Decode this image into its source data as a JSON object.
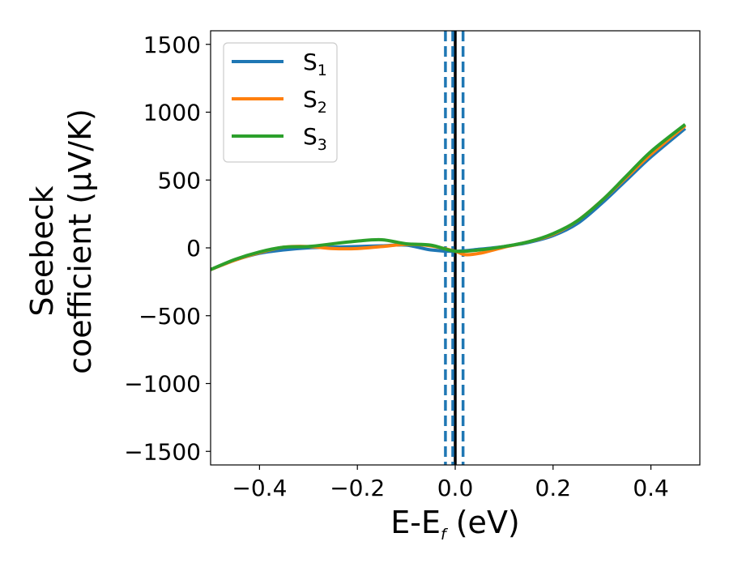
{
  "chart_data": {
    "type": "line",
    "title": "",
    "xlabel": {
      "main": "E-E",
      "sub": "f",
      "unit": " (eV)"
    },
    "ylabel": {
      "line1": "Seebeck",
      "line2": "coefficient  (μV/K)"
    },
    "xlim": [
      -0.5,
      0.5
    ],
    "ylim": [
      -1600,
      1600
    ],
    "xticks": [
      -0.4,
      -0.2,
      0.0,
      0.2,
      0.4
    ],
    "xtick_labels": [
      "−0.4",
      "−0.2",
      "0.0",
      "0.2",
      "0.4"
    ],
    "yticks": [
      -1500,
      -1000,
      -500,
      0,
      500,
      1000,
      1500
    ],
    "ytick_labels": [
      "−1500",
      "−1000",
      "−500",
      "0",
      "500",
      "1000",
      "1500"
    ],
    "grid": false,
    "legend_position": "top-left",
    "vlines": [
      {
        "x": 0.0,
        "style": "solid",
        "color": "#000000"
      },
      {
        "x": -0.02,
        "style": "dashed",
        "color": "#1f77b4"
      },
      {
        "x": -0.005,
        "style": "dashed",
        "color": "#1f77b4"
      },
      {
        "x": 0.016,
        "style": "dashed",
        "color": "#1f77b4"
      }
    ],
    "series": [
      {
        "name": "S",
        "sub": "1",
        "color": "#1f77b4",
        "x": [
          -0.5,
          -0.45,
          -0.4,
          -0.35,
          -0.3,
          -0.25,
          -0.2,
          -0.15,
          -0.1,
          -0.05,
          0.0,
          0.05,
          0.1,
          0.15,
          0.2,
          0.25,
          0.3,
          0.35,
          0.4,
          0.47
        ],
        "y": [
          -160,
          -90,
          -40,
          -15,
          0,
          5,
          10,
          15,
          20,
          -15,
          -25,
          -10,
          10,
          40,
          90,
          180,
          330,
          500,
          670,
          880
        ]
      },
      {
        "name": "S",
        "sub": "2",
        "color": "#ff7f0e",
        "x": [
          -0.5,
          -0.45,
          -0.4,
          -0.35,
          -0.3,
          -0.25,
          -0.2,
          -0.15,
          -0.1,
          -0.05,
          0.0,
          0.02,
          0.05,
          0.1,
          0.15,
          0.2,
          0.25,
          0.3,
          0.35,
          0.4,
          0.47
        ],
        "y": [
          -160,
          -90,
          -35,
          5,
          10,
          -5,
          -5,
          10,
          25,
          15,
          -25,
          -50,
          -40,
          5,
          45,
          100,
          200,
          350,
          520,
          690,
          900
        ]
      },
      {
        "name": "S",
        "sub": "3",
        "color": "#2ca02c",
        "x": [
          -0.5,
          -0.45,
          -0.4,
          -0.35,
          -0.3,
          -0.25,
          -0.2,
          -0.15,
          -0.1,
          -0.05,
          0.0,
          0.05,
          0.1,
          0.15,
          0.2,
          0.25,
          0.3,
          0.35,
          0.4,
          0.47
        ],
        "y": [
          -160,
          -85,
          -30,
          5,
          10,
          30,
          50,
          60,
          30,
          20,
          -25,
          -15,
          10,
          45,
          105,
          200,
          350,
          530,
          710,
          910
        ]
      }
    ]
  }
}
